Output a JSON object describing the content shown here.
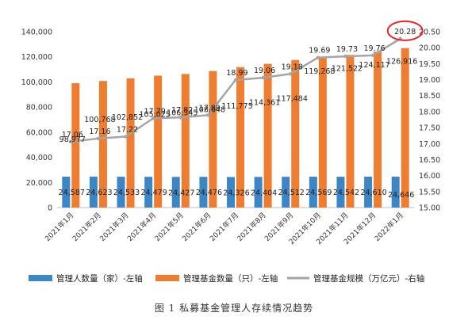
{
  "chart_data": {
    "type": "bar",
    "categories": [
      "2021年1月",
      "2021年2月",
      "2021年3月",
      "2021年4月",
      "2021年5月",
      "2021年6月",
      "2021年7月",
      "2021年8月",
      "2021年9月",
      "2021年10月",
      "2021年11月",
      "2021年12月",
      "2022年1月"
    ],
    "series": [
      {
        "name": "管理人数量（家）-左轴",
        "type": "bar",
        "axis": "left",
        "color": "#3d86c6",
        "values": [
          24587,
          24623,
          24533,
          24479,
          24427,
          24476,
          24326,
          24404,
          24512,
          24569,
          24542,
          24610,
          24646
        ],
        "labels": [
          "24,587",
          "24,623",
          "24,533",
          "24,479",
          "24,427",
          "24,476",
          "24,326",
          "24,404",
          "24,512",
          "24,569",
          "24,542",
          "24,610",
          "24,646"
        ]
      },
      {
        "name": "管理基金数量（只）-左轴",
        "type": "bar",
        "axis": "left",
        "color": "#ee7d31",
        "values": [
          98977,
          100768,
          102852,
          105025,
          106345,
          108648,
          111775,
          114361,
          117484,
          119268,
          121522,
          124117,
          126916
        ],
        "labels": [
          "98,977",
          "100,768",
          "102,852",
          "105,025",
          "106,345",
          "108,648",
          "111,775",
          "114,361",
          "117,484",
          "119,268",
          "121,522",
          "124,117",
          "126,916"
        ]
      },
      {
        "name": "管理基金规模（万亿元）-右轴",
        "type": "line",
        "axis": "right",
        "color": "#a5a5a5",
        "values": [
          17.06,
          17.16,
          17.22,
          17.79,
          17.82,
          17.89,
          18.99,
          19.06,
          19.18,
          19.69,
          19.73,
          19.76,
          20.28
        ],
        "labels": [
          "17.06",
          "17.16",
          "17.22",
          "17.79",
          "17.82",
          "17.89",
          "18.99",
          "19.06",
          "19.18",
          "19.69",
          "19.73",
          "19.76",
          "20.28"
        ]
      }
    ],
    "left_axis": {
      "min": 0,
      "max": 140000,
      "step": 20000,
      "ticks": [
        "0",
        "20,000",
        "40,000",
        "60,000",
        "80,000",
        "100,000",
        "120,000",
        "140,000"
      ]
    },
    "right_axis": {
      "min": 15.0,
      "max": 20.5,
      "step": 0.5,
      "ticks": [
        "15.00",
        "15.50",
        "16.00",
        "16.50",
        "17.00",
        "17.50",
        "18.00",
        "18.50",
        "19.00",
        "19.50",
        "20.00",
        "20.50"
      ]
    },
    "highlight": {
      "series": 2,
      "index": 12,
      "color": "#e0262a"
    },
    "legend_position": "bottom",
    "grid": false,
    "caption": "图 1  私募基金管理人存续情况趋势"
  }
}
